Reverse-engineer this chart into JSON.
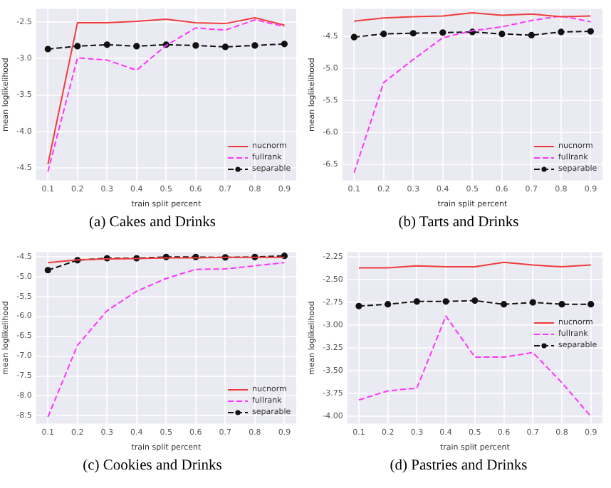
{
  "chart_data": [
    {
      "type": "line",
      "title": "(a) Cakes and Drinks",
      "xlabel": "train split percent",
      "ylabel": "mean loglikelihood",
      "x": [
        0.1,
        0.2,
        0.3,
        0.4,
        0.5,
        0.6,
        0.7,
        0.8,
        0.9
      ],
      "xlim": [
        0.06,
        0.94
      ],
      "xticks": [
        0.1,
        0.2,
        0.3,
        0.4,
        0.5,
        0.6,
        0.7,
        0.8,
        0.9
      ],
      "ylim": [
        -4.67,
        -2.32
      ],
      "yticks": [
        {
          "value": -4.5,
          "label": "-4.5"
        },
        {
          "value": -4.0,
          "label": "-4.0"
        },
        {
          "value": -3.5,
          "label": "-3.5"
        },
        {
          "value": -3.0,
          "label": "-3.0"
        },
        {
          "value": -2.5,
          "label": "-2.5"
        }
      ],
      "grid": true,
      "legend": "bottom right",
      "series": [
        {
          "name": "nucnorm",
          "color": "#f03c3c",
          "line_style": "solid",
          "marker": "none",
          "values": [
            -4.45,
            -2.51,
            -2.51,
            -2.49,
            -2.46,
            -2.51,
            -2.52,
            -2.44,
            -2.54
          ]
        },
        {
          "name": "fullrank",
          "color": "#ff33ff",
          "line_style": "dashed",
          "marker": "none",
          "values": [
            -4.55,
            -2.99,
            -3.02,
            -3.16,
            -2.82,
            -2.58,
            -2.61,
            -2.47,
            -2.56
          ]
        },
        {
          "name": "separable",
          "color": "#111111",
          "line_style": "dashed",
          "marker": "circle",
          "values": [
            -2.87,
            -2.83,
            -2.81,
            -2.83,
            -2.81,
            -2.82,
            -2.84,
            -2.82,
            -2.8
          ]
        }
      ]
    },
    {
      "type": "line",
      "title": "(b) Tarts and Drinks",
      "xlabel": "train split percent",
      "ylabel": "mean loglikelihood",
      "x": [
        0.1,
        0.2,
        0.3,
        0.4,
        0.5,
        0.6,
        0.7,
        0.8,
        0.9
      ],
      "xlim": [
        0.06,
        0.94
      ],
      "xticks": [
        0.1,
        0.2,
        0.3,
        0.4,
        0.5,
        0.6,
        0.7,
        0.8,
        0.9
      ],
      "ylim": [
        -6.75,
        -4.07
      ],
      "yticks": [
        {
          "value": -6.5,
          "label": "-6.5"
        },
        {
          "value": -6.0,
          "label": "-6.0"
        },
        {
          "value": -5.5,
          "label": "-5.5"
        },
        {
          "value": -5.0,
          "label": "-5.0"
        },
        {
          "value": -4.5,
          "label": "-4.5"
        }
      ],
      "grid": true,
      "legend": "bottom right",
      "series": [
        {
          "name": "nucnorm",
          "color": "#f03c3c",
          "line_style": "solid",
          "marker": "none",
          "values": [
            -4.26,
            -4.21,
            -4.19,
            -4.18,
            -4.13,
            -4.17,
            -4.15,
            -4.19,
            -4.18
          ]
        },
        {
          "name": "fullrank",
          "color": "#ff33ff",
          "line_style": "dashed",
          "marker": "none",
          "values": [
            -6.63,
            -5.22,
            -4.86,
            -4.52,
            -4.41,
            -4.35,
            -4.25,
            -4.18,
            -4.27
          ]
        },
        {
          "name": "separable",
          "color": "#111111",
          "line_style": "dashed",
          "marker": "circle",
          "values": [
            -4.51,
            -4.46,
            -4.45,
            -4.44,
            -4.43,
            -4.46,
            -4.48,
            -4.43,
            -4.42
          ]
        }
      ]
    },
    {
      "type": "line",
      "title": "(c) Cookies and Drinks",
      "xlabel": "train split percent",
      "ylabel": "mean loglikelihood",
      "x": [
        0.1,
        0.2,
        0.3,
        0.4,
        0.5,
        0.6,
        0.7,
        0.8,
        0.9
      ],
      "xlim": [
        0.06,
        0.94
      ],
      "xticks": [
        0.1,
        0.2,
        0.3,
        0.4,
        0.5,
        0.6,
        0.7,
        0.8,
        0.9
      ],
      "ylim": [
        -8.7,
        -4.39
      ],
      "yticks": [
        {
          "value": -8.5,
          "label": "-8.5"
        },
        {
          "value": -8.0,
          "label": "-8.0"
        },
        {
          "value": -7.5,
          "label": "-7.5"
        },
        {
          "value": -7.0,
          "label": "-7.0"
        },
        {
          "value": -6.5,
          "label": "-6.5"
        },
        {
          "value": -6.0,
          "label": "-6.0"
        },
        {
          "value": -5.5,
          "label": "-5.5"
        },
        {
          "value": -5.0,
          "label": "-5.0"
        },
        {
          "value": -4.5,
          "label": "-4.5"
        }
      ],
      "grid": true,
      "legend": "bottom right",
      "series": [
        {
          "name": "nucnorm",
          "color": "#f03c3c",
          "line_style": "solid",
          "marker": "none",
          "values": [
            -4.65,
            -4.58,
            -4.56,
            -4.55,
            -4.53,
            -4.53,
            -4.52,
            -4.52,
            -4.52
          ]
        },
        {
          "name": "fullrank",
          "color": "#ff33ff",
          "line_style": "dashed",
          "marker": "none",
          "values": [
            -8.53,
            -6.73,
            -5.86,
            -5.37,
            -5.05,
            -4.82,
            -4.81,
            -4.73,
            -4.65
          ]
        },
        {
          "name": "separable",
          "color": "#111111",
          "line_style": "dashed",
          "marker": "circle",
          "values": [
            -4.84,
            -4.59,
            -4.54,
            -4.54,
            -4.51,
            -4.51,
            -4.52,
            -4.51,
            -4.48
          ]
        }
      ]
    },
    {
      "type": "line",
      "title": "(d) Pastries and Drinks",
      "xlabel": "train split percent",
      "ylabel": "mean loglikelihood",
      "x": [
        0.1,
        0.2,
        0.3,
        0.4,
        0.5,
        0.6,
        0.7,
        0.8,
        0.9
      ],
      "xlim": [
        0.06,
        0.94
      ],
      "xticks": [
        0.1,
        0.2,
        0.3,
        0.4,
        0.5,
        0.6,
        0.7,
        0.8,
        0.9
      ],
      "ylim": [
        -4.08,
        -2.2
      ],
      "yticks": [
        {
          "value": -4.0,
          "label": "-4.00"
        },
        {
          "value": -3.75,
          "label": "-3.75"
        },
        {
          "value": -3.5,
          "label": "-3.50"
        },
        {
          "value": -3.25,
          "label": "-3.25"
        },
        {
          "value": -3.0,
          "label": "-3.00"
        },
        {
          "value": -2.75,
          "label": "-2.75"
        },
        {
          "value": -2.5,
          "label": "-2.50"
        },
        {
          "value": -2.25,
          "label": "-2.25"
        }
      ],
      "grid": true,
      "legend": "right",
      "series": [
        {
          "name": "nucnorm",
          "color": "#f03c3c",
          "line_style": "solid",
          "marker": "none",
          "values": [
            -2.37,
            -2.37,
            -2.35,
            -2.36,
            -2.36,
            -2.31,
            -2.34,
            -2.36,
            -2.34
          ]
        },
        {
          "name": "fullrank",
          "color": "#ff33ff",
          "line_style": "dashed",
          "marker": "none",
          "values": [
            -3.82,
            -3.72,
            -3.69,
            -2.9,
            -3.35,
            -3.35,
            -3.3,
            -3.63,
            -4.0
          ]
        },
        {
          "name": "separable",
          "color": "#111111",
          "line_style": "dashed",
          "marker": "circle",
          "values": [
            -2.79,
            -2.77,
            -2.74,
            -2.74,
            -2.73,
            -2.77,
            -2.75,
            -2.77,
            -2.77
          ]
        }
      ]
    }
  ]
}
